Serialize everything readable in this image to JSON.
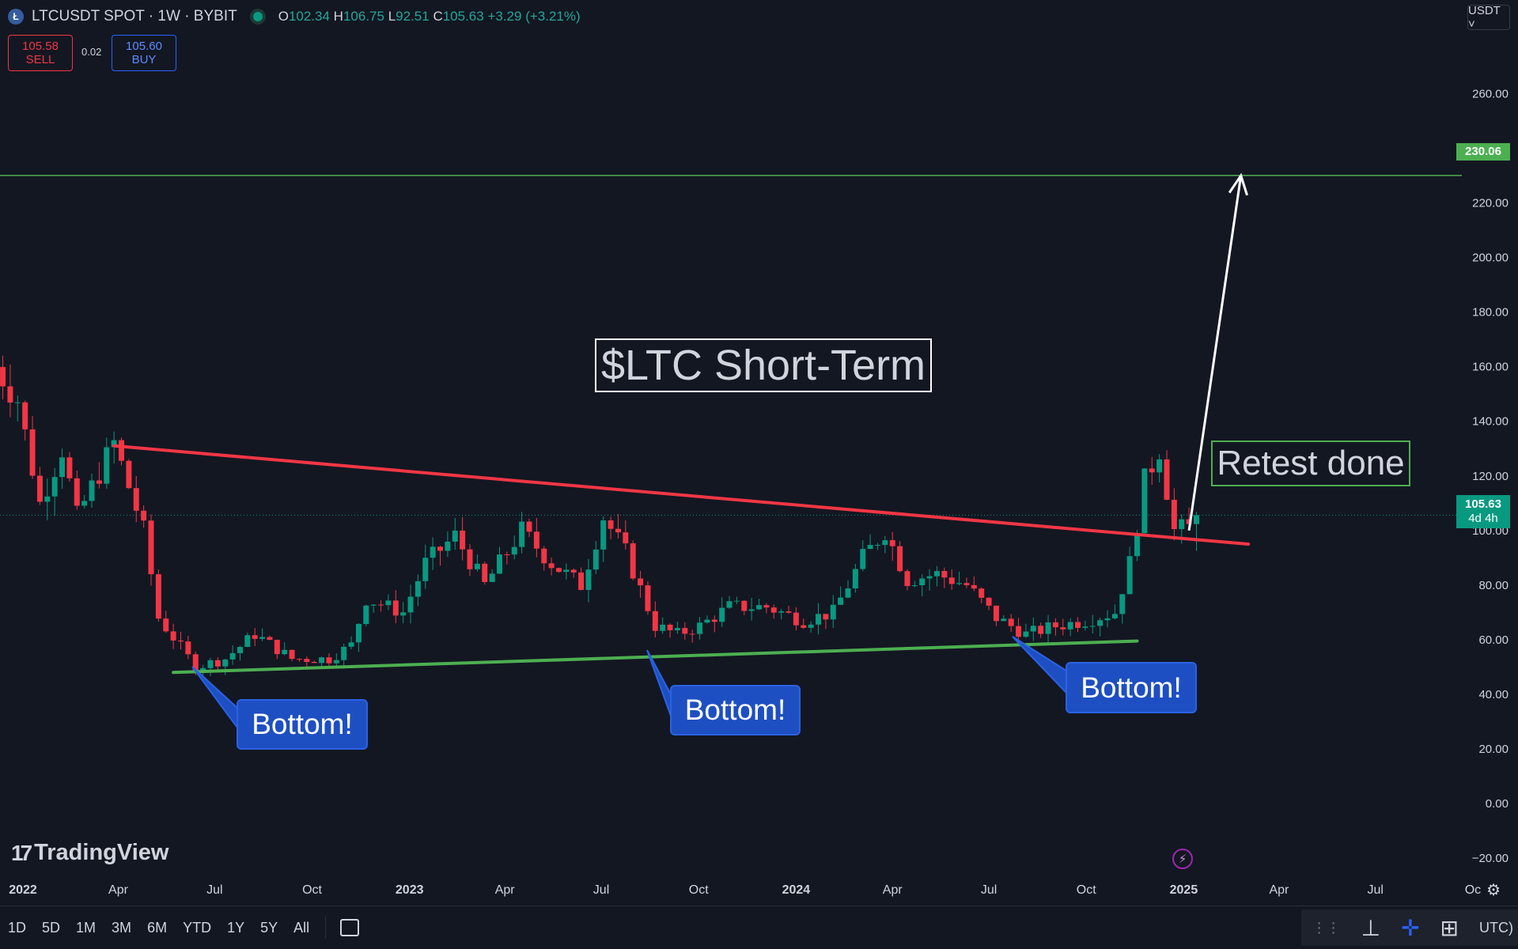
{
  "header": {
    "symbol_icon": "litecoin-icon",
    "symbol": "LTCUSDT SPOT · 1W · BYBIT",
    "o_label": "O",
    "o_value": "102.34",
    "h_label": "H",
    "h_value": "106.75",
    "l_label": "L",
    "l_value": "92.51",
    "c_label": "C",
    "c_value": "105.63",
    "change": "+3.29 (+3.21%)"
  },
  "trade": {
    "sell_price": "105.58",
    "sell_label": "SELL",
    "spread": "0.02",
    "buy_price": "105.60",
    "buy_label": "BUY"
  },
  "currency_button": "USDT ˅",
  "price_tags": {
    "target": "230.06",
    "last_price": "105.63",
    "countdown": "4d 4h"
  },
  "annotations": {
    "title": "$LTC Short-Term",
    "retest": "Retest done",
    "bottom1": "Bottom!",
    "bottom2": "Bottom!",
    "bottom3": "Bottom!"
  },
  "branding": {
    "logo_text": "TradingView"
  },
  "bottom_bar": {
    "ranges": [
      "1D",
      "5D",
      "1M",
      "3M",
      "6M",
      "YTD",
      "1Y",
      "5Y",
      "All"
    ],
    "timezone": "UTC)"
  },
  "colors": {
    "background": "#131722",
    "up": "#089981",
    "down": "#f23645",
    "resistance": "#f23645",
    "support": "#4caf50",
    "target_line": "#4caf50",
    "callout": "#1e4fc2"
  },
  "chart_data": {
    "type": "candlestick",
    "title": "$LTC Short-Term",
    "symbol": "LTCUSDT",
    "interval": "1W",
    "ylim": [
      -20,
      270
    ],
    "y_ticks": [
      260,
      240,
      220,
      200,
      180,
      160,
      140,
      120,
      100,
      80,
      60,
      40,
      20,
      0,
      -20
    ],
    "x_ticks": [
      "2022",
      "Apr",
      "Jul",
      "Oct",
      "2023",
      "Apr",
      "Jul",
      "Oct",
      "2024",
      "Apr",
      "Jul",
      "Oct",
      "2025",
      "Apr",
      "Jul",
      "Oc"
    ],
    "x_tick_dates": [
      "2022-01-01",
      "2022-04-01",
      "2022-07-01",
      "2022-10-01",
      "2023-01-01",
      "2023-04-01",
      "2023-07-01",
      "2023-10-01",
      "2024-01-01",
      "2024-04-01",
      "2024-07-01",
      "2024-10-01",
      "2025-01-01",
      "2025-04-01",
      "2025-07-01",
      "2025-10-01"
    ],
    "horizontal_line": 230.06,
    "last_close": 105.63,
    "anchors": [
      [
        "2021-12-06",
        160
      ],
      [
        "2021-12-27",
        148
      ],
      [
        "2022-01-17",
        110
      ],
      [
        "2022-02-07",
        130
      ],
      [
        "2022-02-21",
        105
      ],
      [
        "2022-03-28",
        132
      ],
      [
        "2022-04-25",
        100
      ],
      [
        "2022-05-09",
        68
      ],
      [
        "2022-06-13",
        50
      ],
      [
        "2022-07-11",
        53
      ],
      [
        "2022-08-08",
        62
      ],
      [
        "2022-09-12",
        53
      ],
      [
        "2022-10-17",
        53
      ],
      [
        "2022-11-07",
        58
      ],
      [
        "2022-11-21",
        75
      ],
      [
        "2022-12-26",
        70
      ],
      [
        "2023-01-16",
        88
      ],
      [
        "2023-02-13",
        98
      ],
      [
        "2023-03-13",
        80
      ],
      [
        "2023-04-17",
        100
      ],
      [
        "2023-05-15",
        88
      ],
      [
        "2023-06-12",
        80
      ],
      [
        "2023-07-03",
        105
      ],
      [
        "2023-07-24",
        92
      ],
      [
        "2023-08-21",
        65
      ],
      [
        "2023-09-11",
        62
      ],
      [
        "2023-10-02",
        65
      ],
      [
        "2023-10-30",
        72
      ],
      [
        "2023-12-04",
        72
      ],
      [
        "2024-01-08",
        67
      ],
      [
        "2024-02-05",
        70
      ],
      [
        "2024-03-04",
        90
      ],
      [
        "2024-03-25",
        100
      ],
      [
        "2024-04-15",
        82
      ],
      [
        "2024-05-13",
        84
      ],
      [
        "2024-06-10",
        80
      ],
      [
        "2024-07-08",
        68
      ],
      [
        "2024-08-05",
        62
      ],
      [
        "2024-09-02",
        65
      ],
      [
        "2024-09-30",
        67
      ],
      [
        "2024-10-28",
        70
      ],
      [
        "2024-11-11",
        88
      ],
      [
        "2024-11-25",
        118
      ],
      [
        "2024-12-09",
        130
      ],
      [
        "2024-12-23",
        100
      ],
      [
        "2025-01-06",
        101
      ],
      [
        "2025-01-13",
        105.63
      ]
    ],
    "resistance_line": {
      "from": [
        "2022-03-28",
        131
      ],
      "to": [
        "2025-03-03",
        95
      ]
    },
    "support_line": {
      "from": [
        "2022-05-23",
        48
      ],
      "to": [
        "2024-11-18",
        59.5
      ]
    },
    "projection_arrow": {
      "from": [
        "2025-01-06",
        100
      ],
      "to": [
        "2025-02-24",
        230
      ]
    }
  }
}
